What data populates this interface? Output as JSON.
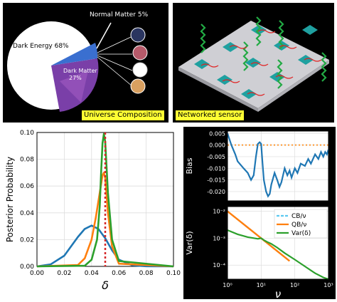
{
  "top_left": {
    "caption": "Universe Composition",
    "labels": {
      "normal_matter": "Normal Matter 5%",
      "dark_energy": "Dark Energy 68%",
      "dark_matter_1": "Dark Matter",
      "dark_matter_2": "27%"
    },
    "colors": {
      "pie_fill": "#ffffff",
      "wedge_blue": "#3a6fd0",
      "dark_matter": "#7a3fa8"
    }
  },
  "top_right": {
    "caption": "Networked sensor",
    "colors": {
      "plate": "#cfcfd4",
      "pad": "#1fa0a0",
      "spring": "#22aa44",
      "wire": "#e02020"
    }
  },
  "chart_data": [
    {
      "type": "line",
      "xlabel": "δ",
      "ylabel": "Posterior Probability",
      "xlim": [
        0.0,
        0.1
      ],
      "ylim": [
        0.0,
        0.1
      ],
      "xticks": [
        "0.00",
        "0.02",
        "0.04",
        "0.06",
        "0.08",
        "0.10"
      ],
      "yticks": [
        "0.00",
        "0.02",
        "0.04",
        "0.06",
        "0.08",
        "0.10"
      ],
      "grid": true,
      "vline": {
        "x": 0.05,
        "color": "#d62728",
        "style": "dotted"
      },
      "series": [
        {
          "color": "#1f77b4",
          "x": [
            0.0,
            0.01,
            0.02,
            0.03,
            0.035,
            0.04,
            0.045,
            0.05,
            0.055,
            0.06,
            0.07,
            0.08,
            0.1
          ],
          "y": [
            0.0,
            0.0015,
            0.008,
            0.022,
            0.028,
            0.0305,
            0.028,
            0.021,
            0.012,
            0.005,
            0.0008,
            0.0001,
            0.0
          ]
        },
        {
          "color": "#ff7f0e",
          "x": [
            0.0,
            0.03,
            0.035,
            0.04,
            0.043,
            0.046,
            0.048,
            0.049,
            0.05,
            0.052,
            0.055,
            0.06,
            0.1
          ],
          "y": [
            0.0,
            0.001,
            0.006,
            0.02,
            0.036,
            0.055,
            0.068,
            0.07,
            0.066,
            0.04,
            0.015,
            0.002,
            0.0
          ]
        },
        {
          "color": "#2ca02c",
          "x": [
            0.0,
            0.035,
            0.04,
            0.044,
            0.046,
            0.047,
            0.048,
            0.049,
            0.05,
            0.052,
            0.055,
            0.06,
            0.1
          ],
          "y": [
            0.0,
            0.0005,
            0.005,
            0.02,
            0.045,
            0.07,
            0.092,
            0.099,
            0.093,
            0.055,
            0.02,
            0.004,
            0.0
          ]
        }
      ]
    },
    {
      "type": "line",
      "ylabel": "Bias",
      "xscale": "log",
      "xlim": [
        1,
        1000
      ],
      "ylim": [
        -0.024,
        0.006
      ],
      "yticks": [
        "0.005",
        "0.000",
        "-0.005",
        "-0.010",
        "-0.015",
        "-0.020"
      ],
      "grid": true,
      "hline": {
        "y": 0.0,
        "color": "#ff9933",
        "style": "dotted"
      },
      "series": [
        {
          "color": "#1f77b4",
          "x": [
            1,
            1.3,
            1.7,
            2,
            3,
            4,
            5,
            6,
            7,
            8,
            9,
            10,
            11,
            12,
            14,
            16,
            18,
            20,
            25,
            30,
            35,
            40,
            50,
            60,
            70,
            80,
            100,
            120,
            150,
            200,
            250,
            300,
            400,
            500,
            600,
            700,
            800,
            900,
            1000
          ],
          "y": [
            0.005,
            0.0,
            -0.004,
            -0.007,
            -0.01,
            -0.012,
            -0.015,
            -0.013,
            -0.005,
            0.0005,
            0.0012,
            0.0005,
            -0.008,
            -0.015,
            -0.02,
            -0.022,
            -0.021,
            -0.017,
            -0.012,
            -0.015,
            -0.018,
            -0.016,
            -0.01,
            -0.013,
            -0.011,
            -0.014,
            -0.01,
            -0.012,
            -0.008,
            -0.009,
            -0.006,
            -0.008,
            -0.004,
            -0.006,
            -0.003,
            -0.005,
            -0.003,
            -0.004,
            -0.002
          ]
        }
      ]
    },
    {
      "type": "line",
      "xlabel": "ν",
      "ylabel": "Var(δ)",
      "xscale": "log",
      "yscale": "log",
      "xlim": [
        1,
        1000
      ],
      "ylim": [
        3e-05,
        0.015
      ],
      "xticks": [
        "10⁰",
        "10¹",
        "10²",
        "10³"
      ],
      "yticks": [
        "10⁻²",
        "10⁻³",
        "10⁻⁴"
      ],
      "grid": true,
      "legend": "top-right",
      "series": [
        {
          "name": "CB/ν",
          "color": "#5bc8f0",
          "style": "dashed",
          "x": [
            1,
            70
          ],
          "y": [
            0.01,
            0.000143
          ]
        },
        {
          "name": "QB/ν",
          "color": "#ff7f0e",
          "x": [
            1,
            70
          ],
          "y": [
            0.01,
            0.000143
          ]
        },
        {
          "name": "Var(δ)",
          "color": "#2ca02c",
          "x": [
            1,
            2,
            4,
            8,
            10,
            12,
            16,
            20,
            30,
            50,
            100,
            200,
            400,
            700,
            1000
          ],
          "y": [
            0.002,
            0.0014,
            0.0011,
            0.00095,
            0.001,
            0.00085,
            0.0007,
            0.00062,
            0.00045,
            0.00028,
            0.00016,
            9e-05,
            5e-05,
            3.5e-05,
            3e-05
          ]
        }
      ]
    }
  ]
}
